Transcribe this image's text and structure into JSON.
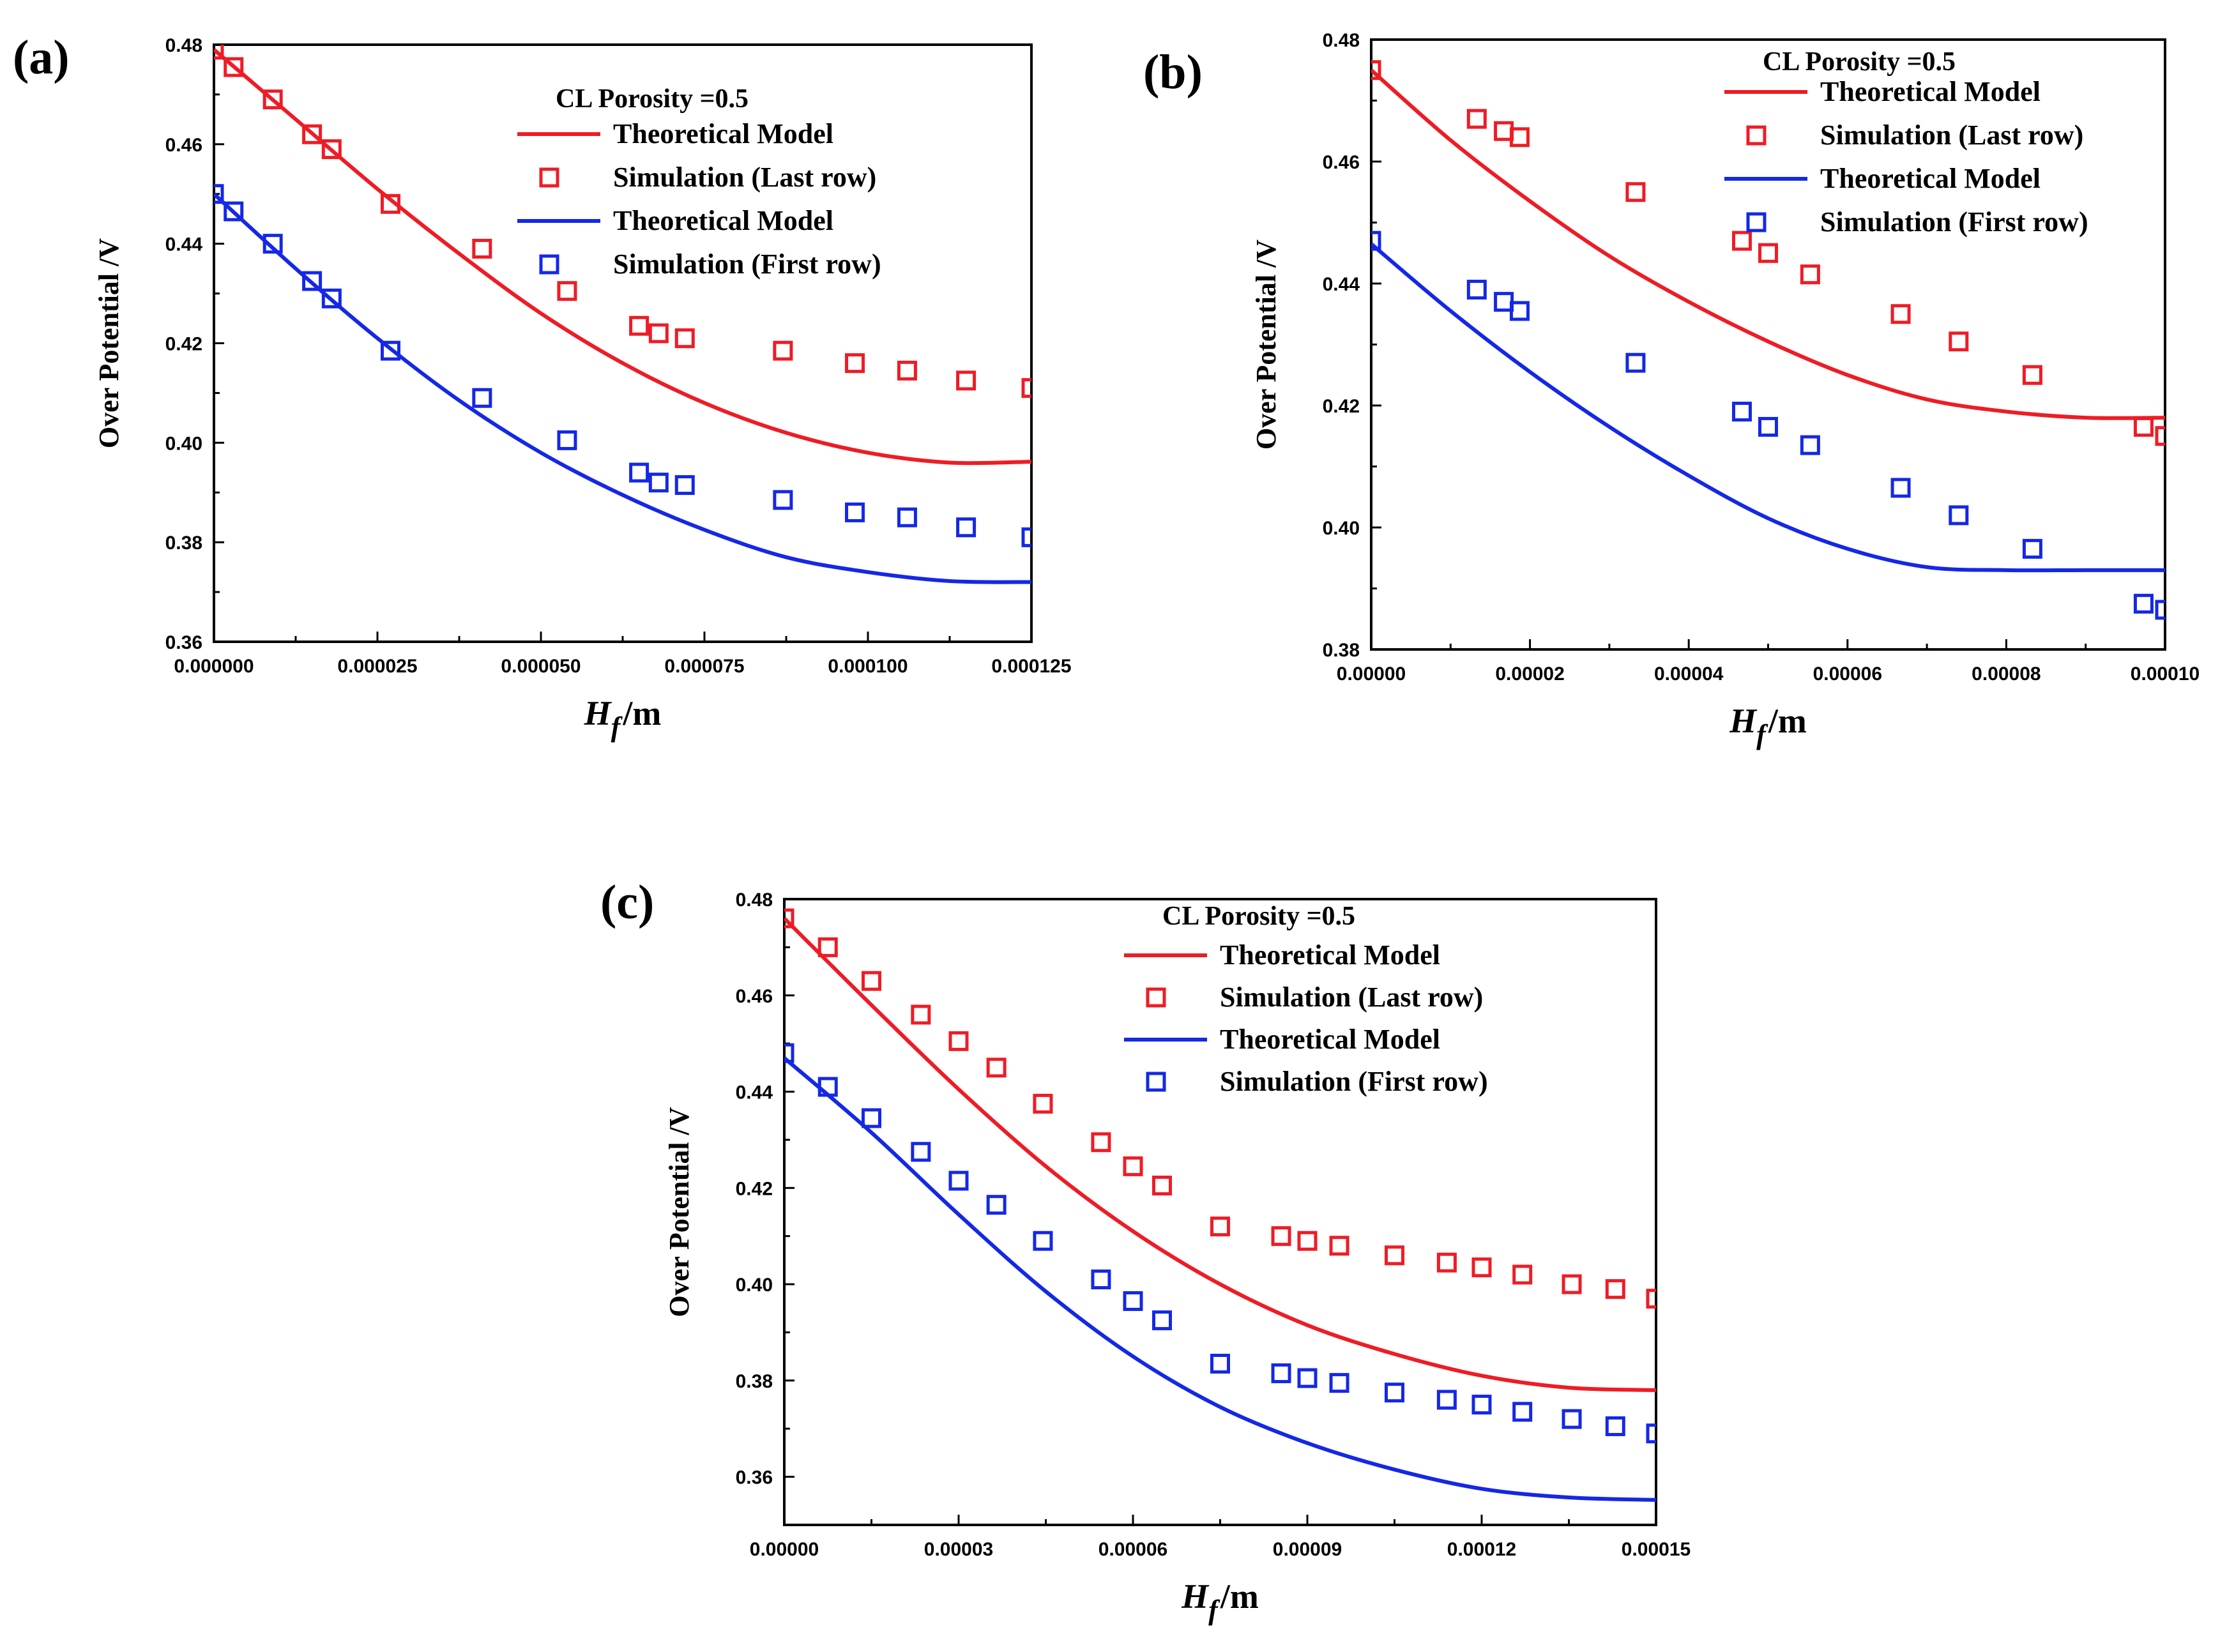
{
  "colors": {
    "red": "#ee1c25",
    "blue": "#1428e6",
    "axis": "#000000"
  },
  "chart_data": [
    {
      "panel_label": "(a)",
      "type": "line",
      "title": "",
      "ylabel": "Over Potential /V",
      "xlabel": "H_f /m",
      "xlabel_parts": {
        "var": "H",
        "sub": "f",
        "unit": "/m"
      },
      "xlim": [
        0,
        0.000125
      ],
      "ylim": [
        0.36,
        0.48
      ],
      "x_tick_labels": [
        "0.000000",
        "0.000025",
        "0.000050",
        "0.000075",
        "0.000100",
        "0.000125"
      ],
      "x_ticks": [
        0,
        2.5e-05,
        5e-05,
        7.5e-05,
        0.0001,
        0.000125
      ],
      "y_tick_labels": [
        "0.36",
        "0.38",
        "0.40",
        "0.42",
        "0.44",
        "0.46",
        "0.48"
      ],
      "y_ticks": [
        0.36,
        0.38,
        0.4,
        0.42,
        0.44,
        0.46,
        0.48
      ],
      "legend_title": "CL Porosity =0.5",
      "legend_position": "top-right",
      "series": [
        {
          "name": "Theoretical Model",
          "kind": "line",
          "color": "red",
          "x": [
            0,
            1.25e-05,
            2.5e-05,
            3.75e-05,
            5e-05,
            6.25e-05,
            7.5e-05,
            8.75e-05,
            0.0001,
            0.0001125,
            0.000125
          ],
          "y": [
            0.479,
            0.465,
            0.451,
            0.438,
            0.426,
            0.416,
            0.408,
            0.402,
            0.398,
            0.396,
            0.3962
          ]
        },
        {
          "name": "Simulation (Last row)",
          "kind": "scatter",
          "color": "red",
          "x": [
            0,
            3e-06,
            9e-06,
            1.5e-05,
            1.8e-05,
            2.7e-05,
            4.1e-05,
            5.4e-05,
            6.5e-05,
            6.8e-05,
            7.2e-05,
            8.7e-05,
            9.8e-05,
            0.000106,
            0.000115,
            0.000125
          ],
          "y": [
            0.479,
            0.4755,
            0.469,
            0.462,
            0.459,
            0.448,
            0.439,
            0.4305,
            0.4235,
            0.422,
            0.421,
            0.4185,
            0.416,
            0.4145,
            0.4125,
            0.411
          ]
        },
        {
          "name": "Theoretical Model",
          "kind": "line",
          "color": "blue",
          "x": [
            0,
            1.25e-05,
            2.5e-05,
            3.75e-05,
            5e-05,
            6.25e-05,
            7.5e-05,
            8.75e-05,
            0.0001,
            0.0001125,
            0.000125
          ],
          "y": [
            0.45,
            0.435,
            0.421,
            0.4085,
            0.398,
            0.3895,
            0.3825,
            0.377,
            0.374,
            0.3722,
            0.372
          ]
        },
        {
          "name": "Simulation (First row)",
          "kind": "scatter",
          "color": "blue",
          "x": [
            0,
            3e-06,
            9e-06,
            1.5e-05,
            1.8e-05,
            2.7e-05,
            4.1e-05,
            5.4e-05,
            6.5e-05,
            6.8e-05,
            7.2e-05,
            8.7e-05,
            9.8e-05,
            0.000106,
            0.000115,
            0.000125
          ],
          "y": [
            0.45,
            0.4465,
            0.44,
            0.4325,
            0.429,
            0.4185,
            0.409,
            0.4005,
            0.394,
            0.392,
            0.3915,
            0.3885,
            0.386,
            0.385,
            0.383,
            0.381
          ]
        }
      ]
    },
    {
      "panel_label": "(b)",
      "type": "line",
      "title": "",
      "ylabel": "Over Potential /V",
      "xlabel": "H_f /m",
      "xlabel_parts": {
        "var": "H",
        "sub": "f",
        "unit": "/m"
      },
      "xlim": [
        0,
        0.0001
      ],
      "ylim": [
        0.38,
        0.48
      ],
      "x_tick_labels": [
        "0.00000",
        "0.00002",
        "0.00004",
        "0.00006",
        "0.00008",
        "0.00010"
      ],
      "x_ticks": [
        0,
        2e-05,
        4e-05,
        6e-05,
        8e-05,
        0.0001
      ],
      "y_tick_labels": [
        "0.38",
        "0.40",
        "0.42",
        "0.44",
        "0.46",
        "0.48"
      ],
      "y_ticks": [
        0.38,
        0.4,
        0.42,
        0.44,
        0.46,
        0.48
      ],
      "legend_title": "CL Porosity =0.5",
      "legend_position": "top-right",
      "series": [
        {
          "name": "Theoretical Model",
          "kind": "line",
          "color": "red",
          "x": [
            0,
            1e-05,
            2e-05,
            3e-05,
            4e-05,
            5e-05,
            6e-05,
            7e-05,
            8e-05,
            9e-05,
            0.0001
          ],
          "y": [
            0.475,
            0.4635,
            0.4535,
            0.4445,
            0.437,
            0.4305,
            0.425,
            0.421,
            0.419,
            0.418,
            0.418
          ]
        },
        {
          "name": "Simulation (Last row)",
          "kind": "scatter",
          "color": "red",
          "x": [
            0,
            1.33e-05,
            1.67e-05,
            1.87e-05,
            3.33e-05,
            4.67e-05,
            5e-05,
            5.53e-05,
            6.67e-05,
            7.4e-05,
            8.33e-05,
            9.73e-05,
            0.0001
          ],
          "y": [
            0.475,
            0.467,
            0.465,
            0.464,
            0.455,
            0.447,
            0.445,
            0.4415,
            0.435,
            0.4305,
            0.425,
            0.4165,
            0.415
          ]
        },
        {
          "name": "Theoretical Model",
          "kind": "line",
          "color": "blue",
          "x": [
            0,
            1e-05,
            2e-05,
            3e-05,
            4e-05,
            5e-05,
            6e-05,
            7e-05,
            8e-05,
            9e-05,
            0.0001
          ],
          "y": [
            0.4465,
            0.4355,
            0.4255,
            0.4165,
            0.4085,
            0.4015,
            0.3965,
            0.3935,
            0.393,
            0.393,
            0.393
          ]
        },
        {
          "name": "Simulation (First row)",
          "kind": "scatter",
          "color": "blue",
          "x": [
            0,
            1.33e-05,
            1.67e-05,
            1.87e-05,
            3.33e-05,
            4.67e-05,
            5e-05,
            5.53e-05,
            6.67e-05,
            7.4e-05,
            8.33e-05,
            9.73e-05,
            0.0001
          ],
          "y": [
            0.447,
            0.439,
            0.437,
            0.4355,
            0.427,
            0.419,
            0.4165,
            0.4135,
            0.4065,
            0.402,
            0.3965,
            0.3875,
            0.3865
          ]
        }
      ]
    },
    {
      "panel_label": "(c)",
      "type": "line",
      "title": "",
      "ylabel": "Over Potential /V",
      "xlabel": "H_f /m",
      "xlabel_parts": {
        "var": "H",
        "sub": "f",
        "unit": "/m"
      },
      "xlim": [
        0,
        0.00015
      ],
      "ylim": [
        0.35,
        0.48
      ],
      "x_tick_labels": [
        "0.00000",
        "0.00003",
        "0.00006",
        "0.00009",
        "0.00012",
        "0.00015"
      ],
      "x_ticks": [
        0,
        3e-05,
        6e-05,
        9e-05,
        0.00012,
        0.00015
      ],
      "y_tick_labels": [
        "0.36",
        "0.38",
        "0.40",
        "0.42",
        "0.44",
        "0.46",
        "0.48"
      ],
      "y_ticks": [
        0.36,
        0.38,
        0.4,
        0.42,
        0.44,
        0.46,
        0.48
      ],
      "legend_title": "CL Porosity =0.5",
      "legend_position": "top-right",
      "series": [
        {
          "name": "Theoretical Model",
          "kind": "line",
          "color": "red",
          "x": [
            0,
            1.5e-05,
            3e-05,
            4.5e-05,
            6e-05,
            7.5e-05,
            9e-05,
            0.000105,
            0.00012,
            0.000135,
            0.00015
          ],
          "y": [
            0.476,
            0.458,
            0.4405,
            0.4245,
            0.411,
            0.4,
            0.3915,
            0.3855,
            0.381,
            0.3785,
            0.378
          ]
        },
        {
          "name": "Simulation (Last row)",
          "kind": "scatter",
          "color": "red",
          "x": [
            0,
            7.5e-06,
            1.5e-05,
            2.35e-05,
            3e-05,
            3.65e-05,
            4.45e-05,
            5.45e-05,
            6e-05,
            6.5e-05,
            7.5e-05,
            8.55e-05,
            9e-05,
            9.55e-05,
            0.000105,
            0.000114,
            0.00012,
            0.000127,
            0.0001355,
            0.000143,
            0.00015
          ],
          "y": [
            0.476,
            0.47,
            0.463,
            0.456,
            0.4505,
            0.445,
            0.4375,
            0.4295,
            0.4245,
            0.4205,
            0.412,
            0.41,
            0.409,
            0.408,
            0.406,
            0.4045,
            0.4035,
            0.402,
            0.4,
            0.399,
            0.397
          ]
        },
        {
          "name": "Theoretical Model",
          "kind": "line",
          "color": "blue",
          "x": [
            0,
            1.5e-05,
            3e-05,
            4.5e-05,
            6e-05,
            7.5e-05,
            9e-05,
            0.000105,
            0.00012,
            0.000135,
            0.00015
          ],
          "y": [
            0.447,
            0.4315,
            0.4145,
            0.3985,
            0.385,
            0.3745,
            0.367,
            0.3615,
            0.3575,
            0.3557,
            0.3552
          ]
        },
        {
          "name": "Simulation (First row)",
          "kind": "scatter",
          "color": "blue",
          "x": [
            0,
            7.5e-06,
            1.5e-05,
            2.35e-05,
            3e-05,
            3.65e-05,
            4.45e-05,
            5.45e-05,
            6e-05,
            6.5e-05,
            7.5e-05,
            8.55e-05,
            9e-05,
            9.55e-05,
            0.000105,
            0.000114,
            0.00012,
            0.000127,
            0.0001355,
            0.000143,
            0.00015
          ],
          "y": [
            0.448,
            0.441,
            0.4345,
            0.4275,
            0.4215,
            0.4165,
            0.409,
            0.401,
            0.3965,
            0.3925,
            0.3835,
            0.3815,
            0.3805,
            0.3795,
            0.3775,
            0.376,
            0.375,
            0.3735,
            0.372,
            0.3705,
            0.369
          ]
        }
      ]
    }
  ]
}
